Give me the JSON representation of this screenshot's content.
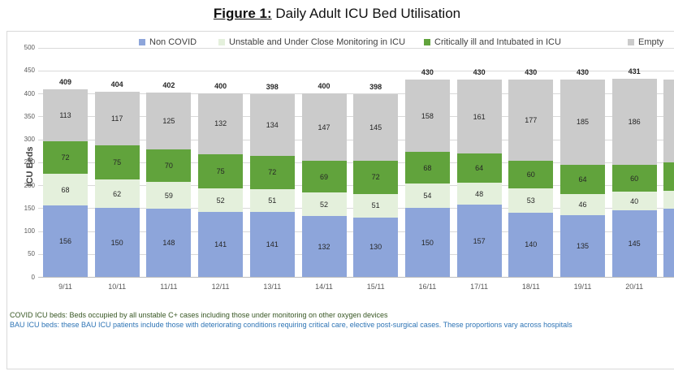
{
  "title": {
    "prefix": "Figure 1:",
    "text": " Daily Adult ICU Bed Utilisation"
  },
  "chart_data": {
    "type": "bar",
    "stacked": true,
    "title": "Daily Adult ICU Bed Utilisation",
    "xlabel": "",
    "ylabel": "ICU Beds",
    "ylim": [
      0,
      500
    ],
    "ytick_interval": 50,
    "grid": true,
    "legend_position": "top",
    "categories": [
      "9/11",
      "10/11",
      "11/11",
      "12/11",
      "13/11",
      "14/11",
      "15/11",
      "16/11",
      "17/11",
      "18/11",
      "19/11",
      "20/11"
    ],
    "series": [
      {
        "name": "Non COVID",
        "color": "#8da5da",
        "values": [
          156,
          150,
          148,
          141,
          141,
          132,
          130,
          150,
          157,
          140,
          135,
          145
        ]
      },
      {
        "name": "Unstable and Under Close Monitoring in ICU",
        "color": "#e4f0dc",
        "values": [
          68,
          62,
          59,
          52,
          51,
          52,
          51,
          54,
          48,
          53,
          46,
          40
        ]
      },
      {
        "name": "Critically ill and Intubated in ICU",
        "color": "#61a33c",
        "values": [
          72,
          75,
          70,
          75,
          72,
          69,
          72,
          68,
          64,
          60,
          64,
          60
        ]
      },
      {
        "name": "Empty",
        "color": "#cbcbcb",
        "values": [
          113,
          117,
          125,
          132,
          134,
          147,
          145,
          158,
          161,
          177,
          185,
          186
        ]
      }
    ],
    "totals": [
      409,
      404,
      402,
      400,
      398,
      400,
      398,
      430,
      430,
      430,
      430,
      431
    ],
    "partial_bar_clipped_at_right": {
      "labels_visible": false,
      "estimated_values": [
        148,
        40,
        62,
        180
      ]
    }
  },
  "legend": [
    {
      "label": "Non COVID",
      "color": "#8da5da"
    },
    {
      "label": "Unstable and Under Close Monitoring in ICU",
      "color": "#e4f0dc"
    },
    {
      "label": "Critically ill and Intubated in ICU",
      "color": "#61a33c"
    },
    {
      "label": "Empty",
      "color": "#cbcbcb"
    }
  ],
  "footnotes": [
    {
      "text": "COVID ICU beds: Beds occupied by all unstable C+ cases including those under monitoring on other oxygen devices",
      "color": "#375623"
    },
    {
      "text": "BAU ICU beds: these BAU ICU patients include those with deteriorating conditions requiring critical care, elective post-surgical cases. These proportions vary across hospitals",
      "color": "#2e74b5"
    }
  ]
}
